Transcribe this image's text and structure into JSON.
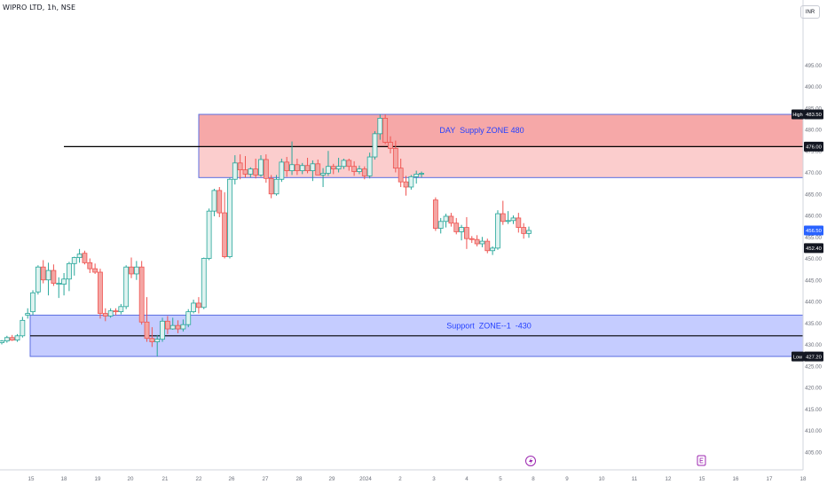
{
  "header": {
    "symbol_title": "WIPRO LTD, 1h, NSE",
    "currency": "INR"
  },
  "colors": {
    "up": "#26a69a",
    "up_fill": "#dff3f0",
    "down": "#ef5350",
    "down_fill": "#f4a6a4",
    "supply_zone_fill": "#f7b6b6",
    "supply_zone_border": "#5b6ee1",
    "support_zone_fill": "#c5ccff",
    "support_zone_border": "#5b6ee1",
    "zone_label_text": "#2440ff",
    "horizontal_line": "#000000",
    "last_price_badge": "#2962ff",
    "axis_text": "#6b6f7a"
  },
  "icons": {
    "event_marker_1": "lightning-icon",
    "event_marker_2": "earnings-icon"
  },
  "chart_data": {
    "type": "candlestick",
    "title": "WIPRO LTD, 1h, NSE",
    "ylim": [
      392.5,
      500
    ],
    "y_ticks": [
      395,
      400,
      405,
      410,
      415,
      420,
      425,
      430,
      435,
      440,
      445,
      450,
      455,
      460,
      465,
      470,
      475,
      480,
      485,
      490,
      495
    ],
    "y_tick_labels": [
      "395.00",
      "400.00",
      "405.00",
      "410.00",
      "415.00",
      "420.00",
      "425.00",
      "430.00",
      "435.00",
      "440.00",
      "445.00",
      "450.00",
      "455.00",
      "460.00",
      "465.00",
      "470.00",
      "475.00",
      "480.00",
      "485.00",
      "490.00",
      "495.00"
    ],
    "x_ticks": [
      "15",
      "18",
      "19",
      "20",
      "21",
      "22",
      "26",
      "27",
      "28",
      "29",
      "2024",
      "2",
      "3",
      "4",
      "5",
      "8",
      "9",
      "10",
      "11",
      "12",
      "15",
      "16",
      "17",
      "18"
    ],
    "grid": false,
    "annotations": {
      "supply_zone": {
        "label": "DAY  Supply ZONE 480",
        "y_low": 468.8,
        "y_high": 483.5
      },
      "support_zone": {
        "label": "Support  ZONE--1  -430",
        "y_low": 427.2,
        "y_high": 436.8
      },
      "horizontal_lines": [
        476.0,
        432.0
      ]
    },
    "price_badges": [
      {
        "label": "High",
        "value": "483.50",
        "y": 483.5,
        "style": "dark"
      },
      {
        "label": "",
        "value": "476.00",
        "y": 476.0,
        "style": "dark"
      },
      {
        "label": "",
        "value": "456.50",
        "y": 456.5,
        "style": "blue"
      },
      {
        "label": "",
        "value": "452.40",
        "y": 452.4,
        "style": "dark"
      },
      {
        "label": "Low",
        "value": "427.20",
        "y": 427.2,
        "style": "dark"
      }
    ],
    "candles": [
      [
        430.4,
        431.0,
        430.0,
        430.8
      ],
      [
        430.8,
        432.0,
        430.4,
        431.6
      ],
      [
        431.6,
        432.2,
        430.8,
        431.0
      ],
      [
        431.0,
        432.4,
        430.6,
        432.0
      ],
      [
        432.0,
        436.4,
        431.6,
        435.6
      ],
      [
        436.8,
        438.4,
        436.0,
        437.2
      ],
      [
        437.6,
        442.6,
        436.8,
        442.0
      ],
      [
        442.2,
        448.4,
        441.6,
        448.0
      ],
      [
        448.0,
        449.6,
        444.2,
        445.0
      ],
      [
        445.0,
        449.0,
        441.4,
        447.2
      ],
      [
        447.2,
        448.6,
        443.6,
        444.2
      ],
      [
        444.2,
        445.6,
        440.8,
        444.2
      ],
      [
        444.0,
        446.6,
        441.4,
        445.2
      ],
      [
        445.2,
        449.2,
        442.4,
        448.8
      ],
      [
        448.8,
        450.4,
        446.0,
        450.2
      ],
      [
        450.2,
        452.2,
        449.0,
        451.0
      ],
      [
        451.2,
        451.8,
        448.6,
        449.0
      ],
      [
        449.0,
        450.0,
        446.6,
        447.6
      ],
      [
        447.6,
        448.8,
        446.4,
        446.8
      ],
      [
        446.8,
        447.6,
        436.0,
        437.2
      ],
      [
        437.2,
        438.4,
        435.4,
        436.6
      ],
      [
        436.6,
        438.4,
        436.2,
        437.8
      ],
      [
        437.8,
        438.4,
        436.8,
        437.6
      ],
      [
        437.6,
        439.4,
        437.0,
        438.8
      ],
      [
        438.8,
        448.4,
        438.2,
        448.0
      ],
      [
        448.0,
        450.2,
        445.4,
        446.4
      ],
      [
        446.4,
        449.4,
        445.0,
        448.0
      ],
      [
        448.0,
        449.4,
        434.6,
        435.2
      ],
      [
        435.2,
        441.0,
        430.6,
        431.4
      ],
      [
        431.4,
        434.0,
        429.4,
        430.6
      ],
      [
        430.6,
        432.2,
        427.2,
        431.2
      ],
      [
        431.2,
        436.2,
        430.6,
        435.4
      ],
      [
        435.4,
        436.6,
        432.4,
        433.6
      ],
      [
        433.6,
        436.2,
        433.4,
        434.4
      ],
      [
        434.4,
        435.6,
        432.6,
        433.6
      ],
      [
        433.6,
        435.8,
        433.0,
        434.6
      ],
      [
        434.6,
        438.2,
        434.0,
        437.6
      ],
      [
        437.6,
        440.4,
        437.2,
        439.6
      ],
      [
        439.6,
        441.0,
        437.2,
        438.6
      ],
      [
        438.6,
        450.2,
        438.2,
        450.0
      ],
      [
        450.0,
        461.6,
        449.6,
        461.0
      ],
      [
        461.0,
        466.2,
        459.8,
        465.8
      ],
      [
        465.8,
        466.6,
        459.6,
        460.6
      ],
      [
        460.6,
        465.4,
        450.0,
        450.4
      ],
      [
        450.4,
        468.8,
        450.0,
        468.4
      ],
      [
        468.4,
        474.0,
        467.2,
        472.2
      ],
      [
        472.2,
        474.2,
        468.4,
        470.6
      ],
      [
        470.6,
        473.8,
        468.8,
        469.6
      ],
      [
        469.6,
        471.2,
        468.8,
        470.8
      ],
      [
        470.8,
        473.2,
        468.6,
        469.4
      ],
      [
        469.4,
        474.0,
        469.0,
        473.0
      ],
      [
        473.0,
        474.2,
        467.6,
        468.6
      ],
      [
        468.6,
        469.4,
        464.0,
        465.0
      ],
      [
        465.0,
        469.4,
        464.6,
        468.4
      ],
      [
        468.4,
        473.2,
        467.8,
        472.4
      ],
      [
        472.4,
        473.6,
        469.0,
        470.4
      ],
      [
        470.4,
        477.2,
        469.4,
        471.8
      ],
      [
        471.8,
        473.2,
        469.4,
        470.4
      ],
      [
        470.4,
        472.2,
        469.6,
        471.6
      ],
      [
        471.6,
        473.4,
        469.8,
        470.4
      ],
      [
        470.4,
        472.8,
        468.0,
        472.0
      ],
      [
        472.0,
        473.0,
        469.4,
        469.4
      ],
      [
        469.4,
        471.0,
        466.6,
        469.8
      ],
      [
        469.8,
        475.0,
        469.2,
        471.4
      ],
      [
        471.4,
        472.0,
        469.6,
        470.8
      ],
      [
        470.8,
        473.4,
        470.0,
        471.4
      ],
      [
        471.4,
        473.2,
        470.8,
        472.8
      ],
      [
        472.8,
        473.2,
        470.4,
        471.4
      ],
      [
        471.4,
        472.6,
        469.2,
        470.2
      ],
      [
        470.2,
        471.6,
        469.6,
        470.8
      ],
      [
        470.8,
        471.4,
        468.4,
        469.2
      ],
      [
        469.2,
        474.6,
        468.6,
        473.6
      ],
      [
        473.6,
        479.6,
        473.0,
        479.0
      ],
      [
        479.0,
        483.5,
        477.6,
        482.6
      ],
      [
        482.6,
        483.5,
        476.6,
        477.0
      ],
      [
        477.0,
        478.4,
        474.4,
        475.6
      ],
      [
        475.6,
        477.4,
        470.0,
        471.0
      ],
      [
        471.0,
        473.2,
        466.6,
        467.8
      ],
      [
        467.8,
        469.2,
        464.6,
        466.6
      ],
      [
        466.6,
        469.4,
        466.0,
        469.0
      ],
      [
        469.0,
        470.4,
        467.4,
        469.6
      ],
      [
        469.6,
        470.2,
        468.8,
        469.8
      ],
      [
        463.6,
        464.2,
        456.4,
        457.0
      ],
      [
        457.0,
        459.4,
        455.8,
        458.6
      ],
      [
        458.6,
        460.4,
        457.2,
        459.8
      ],
      [
        459.8,
        460.6,
        457.4,
        458.2
      ],
      [
        458.2,
        459.4,
        455.6,
        456.2
      ],
      [
        456.2,
        457.8,
        454.2,
        457.2
      ],
      [
        457.2,
        459.6,
        452.2,
        454.6
      ],
      [
        454.6,
        455.2,
        453.6,
        454.4
      ],
      [
        454.4,
        455.4,
        452.8,
        453.4
      ],
      [
        453.4,
        455.0,
        452.6,
        454.0
      ],
      [
        454.0,
        454.6,
        451.2,
        451.8
      ],
      [
        451.8,
        452.8,
        450.8,
        452.4
      ],
      [
        452.4,
        461.2,
        452.0,
        460.4
      ],
      [
        460.4,
        463.4,
        457.8,
        458.6
      ],
      [
        458.6,
        461.0,
        458.0,
        458.8
      ],
      [
        458.8,
        460.0,
        458.0,
        459.4
      ],
      [
        459.4,
        460.6,
        456.0,
        457.2
      ],
      [
        457.2,
        458.2,
        454.6,
        455.8
      ],
      [
        455.8,
        457.4,
        454.8,
        456.5
      ]
    ]
  }
}
